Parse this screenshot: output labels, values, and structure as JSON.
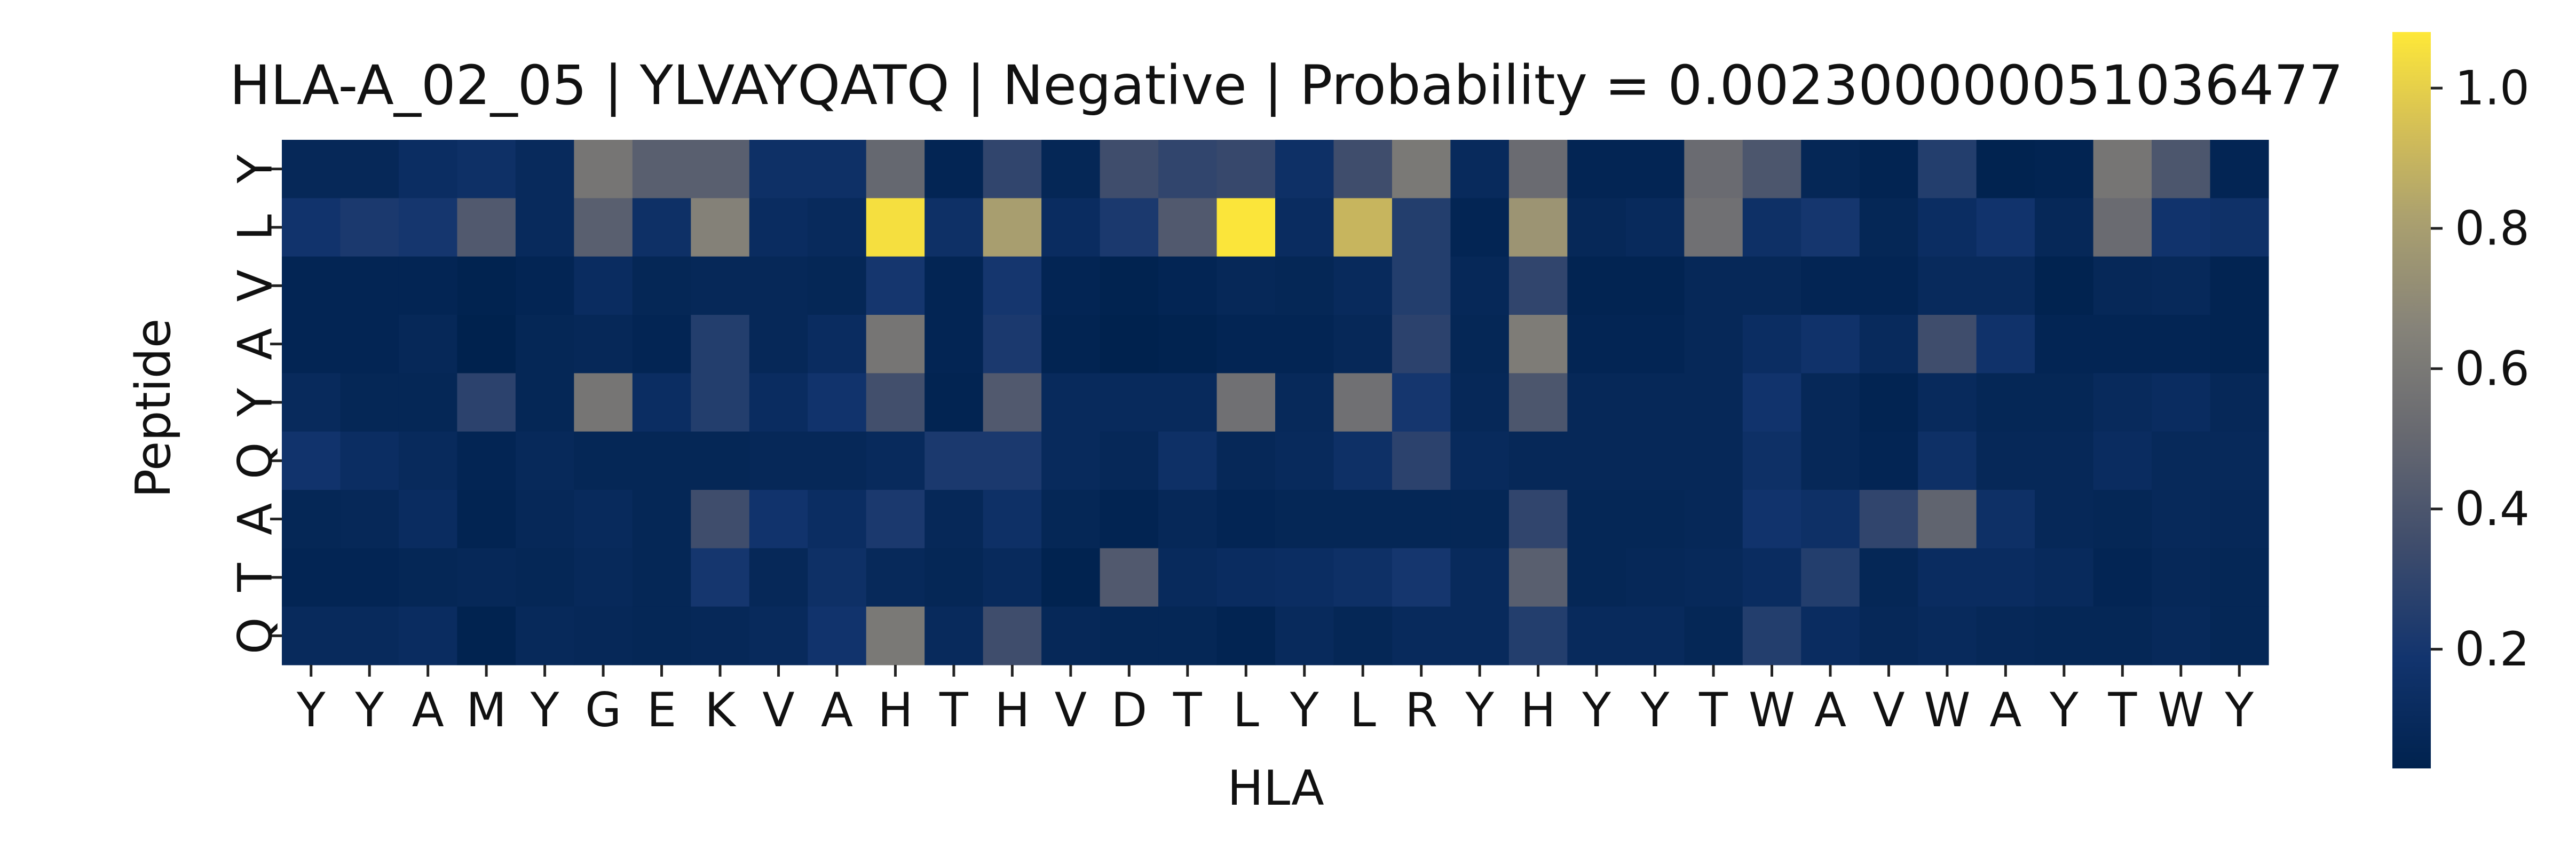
{
  "chart_data": {
    "type": "heatmap",
    "title": "HLA-A_02_05 | YLVAYQATQ | Negative | Probability = 0.002300000051036477",
    "xlabel": "HLA",
    "ylabel": "Peptide",
    "x_tick_labels": [
      "Y",
      "Y",
      "A",
      "M",
      "Y",
      "G",
      "E",
      "K",
      "V",
      "A",
      "H",
      "T",
      "H",
      "V",
      "D",
      "T",
      "L",
      "Y",
      "L",
      "R",
      "Y",
      "H",
      "Y",
      "Y",
      "T",
      "W",
      "A",
      "V",
      "W",
      "A",
      "Y",
      "T",
      "W",
      "Y"
    ],
    "y_tick_labels": [
      "Y",
      "L",
      "V",
      "A",
      "Y",
      "Q",
      "A",
      "T",
      "Q"
    ],
    "colormap": "cividis",
    "color_range": [
      0.03,
      1.08
    ],
    "colorbar_ticks": [
      "0.2",
      "0.4",
      "0.6",
      "0.8",
      "1.0"
    ],
    "colorbar_tick_values": [
      0.2,
      0.4,
      0.6,
      0.8,
      1.0
    ],
    "values": [
      [
        0.08,
        0.08,
        0.13,
        0.15,
        0.1,
        0.58,
        0.45,
        0.45,
        0.15,
        0.15,
        0.5,
        0.06,
        0.3,
        0.07,
        0.35,
        0.3,
        0.32,
        0.15,
        0.35,
        0.6,
        0.1,
        0.52,
        0.06,
        0.06,
        0.52,
        0.4,
        0.07,
        0.05,
        0.25,
        0.04,
        0.05,
        0.58,
        0.4,
        0.06
      ],
      [
        0.18,
        0.22,
        0.2,
        0.42,
        0.1,
        0.45,
        0.15,
        0.65,
        0.12,
        0.1,
        1.05,
        0.15,
        0.8,
        0.12,
        0.22,
        0.42,
        1.07,
        0.12,
        0.9,
        0.25,
        0.06,
        0.75,
        0.08,
        0.1,
        0.55,
        0.15,
        0.2,
        0.07,
        0.13,
        0.18,
        0.08,
        0.52,
        0.18,
        0.16
      ],
      [
        0.06,
        0.06,
        0.06,
        0.04,
        0.06,
        0.12,
        0.07,
        0.08,
        0.08,
        0.07,
        0.2,
        0.06,
        0.2,
        0.06,
        0.04,
        0.06,
        0.08,
        0.07,
        0.1,
        0.25,
        0.08,
        0.3,
        0.05,
        0.05,
        0.08,
        0.08,
        0.06,
        0.06,
        0.1,
        0.1,
        0.04,
        0.08,
        0.09,
        0.05
      ],
      [
        0.06,
        0.06,
        0.08,
        0.03,
        0.07,
        0.08,
        0.06,
        0.25,
        0.08,
        0.12,
        0.58,
        0.06,
        0.22,
        0.05,
        0.03,
        0.04,
        0.06,
        0.06,
        0.08,
        0.28,
        0.07,
        0.62,
        0.06,
        0.06,
        0.08,
        0.13,
        0.17,
        0.1,
        0.35,
        0.17,
        0.06,
        0.06,
        0.06,
        0.05
      ],
      [
        0.1,
        0.07,
        0.07,
        0.28,
        0.07,
        0.58,
        0.13,
        0.25,
        0.12,
        0.18,
        0.36,
        0.05,
        0.42,
        0.1,
        0.1,
        0.1,
        0.55,
        0.09,
        0.55,
        0.2,
        0.08,
        0.4,
        0.08,
        0.08,
        0.08,
        0.18,
        0.08,
        0.05,
        0.1,
        0.07,
        0.07,
        0.1,
        0.12,
        0.08
      ],
      [
        0.18,
        0.13,
        0.1,
        0.06,
        0.09,
        0.07,
        0.07,
        0.07,
        0.08,
        0.08,
        0.1,
        0.22,
        0.22,
        0.1,
        0.08,
        0.15,
        0.08,
        0.1,
        0.15,
        0.28,
        0.1,
        0.08,
        0.08,
        0.08,
        0.08,
        0.15,
        0.08,
        0.06,
        0.15,
        0.08,
        0.08,
        0.12,
        0.09,
        0.09
      ],
      [
        0.07,
        0.08,
        0.12,
        0.05,
        0.08,
        0.1,
        0.07,
        0.35,
        0.18,
        0.13,
        0.22,
        0.08,
        0.15,
        0.07,
        0.05,
        0.08,
        0.06,
        0.07,
        0.07,
        0.07,
        0.07,
        0.3,
        0.07,
        0.07,
        0.08,
        0.18,
        0.15,
        0.3,
        0.48,
        0.15,
        0.08,
        0.07,
        0.09,
        0.08
      ],
      [
        0.06,
        0.06,
        0.07,
        0.08,
        0.07,
        0.09,
        0.07,
        0.2,
        0.08,
        0.15,
        0.09,
        0.07,
        0.1,
        0.04,
        0.42,
        0.1,
        0.12,
        0.13,
        0.15,
        0.2,
        0.1,
        0.45,
        0.07,
        0.08,
        0.09,
        0.12,
        0.25,
        0.07,
        0.12,
        0.12,
        0.1,
        0.06,
        0.08,
        0.07
      ],
      [
        0.1,
        0.1,
        0.12,
        0.04,
        0.09,
        0.08,
        0.07,
        0.08,
        0.1,
        0.18,
        0.6,
        0.1,
        0.35,
        0.08,
        0.07,
        0.07,
        0.05,
        0.1,
        0.07,
        0.1,
        0.1,
        0.25,
        0.1,
        0.1,
        0.07,
        0.25,
        0.12,
        0.08,
        0.1,
        0.08,
        0.07,
        0.07,
        0.09,
        0.07
      ]
    ]
  }
}
